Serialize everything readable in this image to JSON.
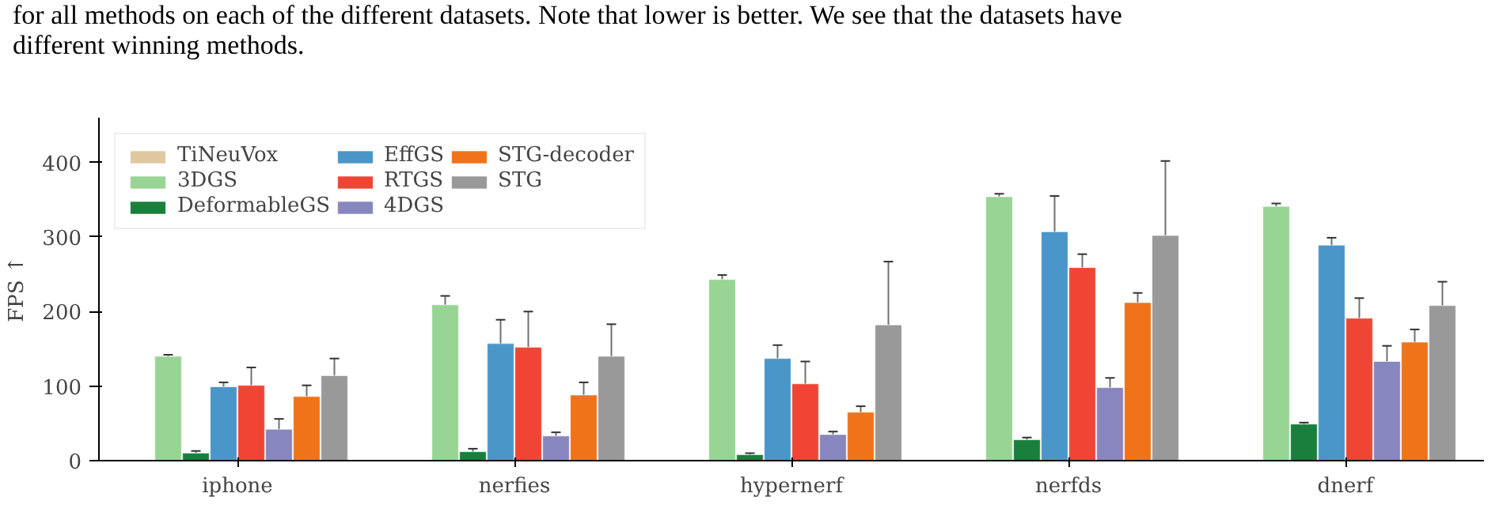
{
  "chart_data": {
    "type": "bar",
    "ylabel": "FPS ↑",
    "categories": [
      "iphone",
      "nerfies",
      "hypernerf",
      "nerfds",
      "dnerf"
    ],
    "ylim": [
      0,
      460
    ],
    "yticks": [
      0,
      100,
      200,
      300,
      400
    ],
    "legend": "top left",
    "grid": false,
    "annotations": [
      "for all methods on each of the different datasets. Note that lower is better. We see that the datasets have",
      "different winning methods."
    ],
    "series": [
      {
        "name": "TiNeuVox",
        "color": "#dfc8a0",
        "values": [
          null,
          null,
          null,
          null,
          null
        ]
      },
      {
        "name": "3DGS",
        "color": "#98d594",
        "values": [
          140,
          209,
          243,
          354,
          341
        ],
        "errors": [
          2,
          12,
          6,
          4,
          4
        ]
      },
      {
        "name": "DeformableGS",
        "color": "#1a7f3c",
        "values": [
          10,
          12,
          8,
          28,
          49
        ],
        "errors": [
          3,
          4,
          2,
          3,
          2
        ]
      },
      {
        "name": "EffGS",
        "color": "#4a96c9",
        "values": [
          99,
          157,
          137,
          307,
          289
        ],
        "errors": [
          6,
          32,
          18,
          48,
          10
        ]
      },
      {
        "name": "RTGS",
        "color": "#f04535",
        "values": [
          101,
          152,
          103,
          259,
          191
        ],
        "errors": [
          24,
          48,
          30,
          18,
          27
        ]
      },
      {
        "name": "4DGS",
        "color": "#8886be",
        "values": [
          42,
          33,
          35,
          98,
          133
        ],
        "errors": [
          14,
          5,
          4,
          13,
          21
        ]
      },
      {
        "name": "STG-decoder",
        "color": "#f07319",
        "values": [
          86,
          88,
          65,
          212,
          159
        ],
        "errors": [
          15,
          17,
          8,
          13,
          17
        ]
      },
      {
        "name": "STG",
        "color": "#999999",
        "values": [
          114,
          140,
          182,
          302,
          208
        ],
        "errors": [
          23,
          43,
          85,
          100,
          32
        ]
      }
    ]
  }
}
